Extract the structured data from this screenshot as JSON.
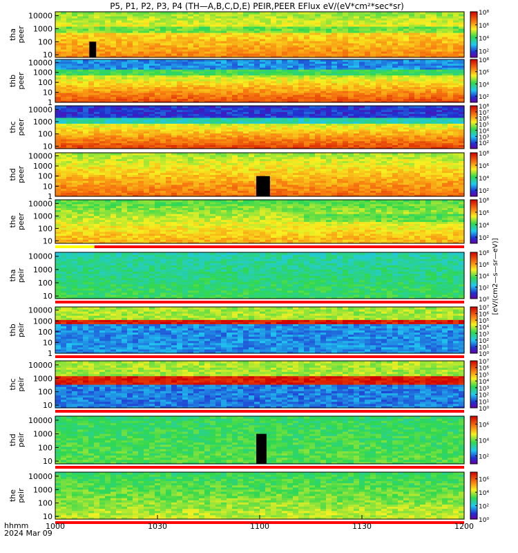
{
  "chart_data": {
    "type": "heatmap",
    "title": "P5, P1, P2, P3, P4 (TH—A,B,C,D,E) PEIR,PEER EFlux eV/(eV*cm²*sec*sr)",
    "colorbar_label": "[eV/(cm2—s—sr—eV)]",
    "x_label_top": "hhmm",
    "x_label_bottom": "2024 Mar 09",
    "x_ticks": [
      "1000",
      "1030",
      "1100",
      "1130",
      "1200"
    ],
    "x_range_minutes": [
      0,
      120
    ],
    "panels": [
      {
        "probe": "tha",
        "species": "peer",
        "y_ticks": [
          "10",
          "100",
          "1000",
          "10000"
        ],
        "cbar_ticks": [
          "10²",
          "10⁴",
          "10⁶",
          "10⁸"
        ],
        "cbar_range": [
          1,
          8
        ],
        "flag_bar": "none",
        "gaps": [
          {
            "start": 10,
            "end": 12,
            "min_e": 10,
            "max_e": 100
          }
        ]
      },
      {
        "probe": "thb",
        "species": "peer",
        "y_ticks": [
          "1",
          "10",
          "100",
          "1000",
          "10000"
        ],
        "cbar_ticks": [
          "10²",
          "10⁴",
          "10⁶",
          "10⁸"
        ],
        "cbar_range": [
          1,
          8
        ],
        "flag_bar": "none",
        "gaps": []
      },
      {
        "probe": "thc",
        "species": "peer",
        "y_ticks": [
          "10",
          "100",
          "1000",
          "10000"
        ],
        "cbar_ticks": [
          "10²",
          "10³",
          "10⁴",
          "10⁵",
          "10⁶",
          "10⁷",
          "10⁸"
        ],
        "cbar_range": [
          1,
          8
        ],
        "flag_bar": "none",
        "gaps": []
      },
      {
        "probe": "thd",
        "species": "peer",
        "y_ticks": [
          "1",
          "10",
          "100",
          "1000",
          "10000"
        ],
        "cbar_ticks": [
          "10²",
          "10⁴",
          "10⁶",
          "10⁸"
        ],
        "cbar_range": [
          1,
          8
        ],
        "flag_bar": "none",
        "gaps": [
          {
            "start": 59,
            "end": 63,
            "min_e": 1,
            "max_e": 100
          }
        ]
      },
      {
        "probe": "the",
        "species": "peer",
        "y_ticks": [
          "10",
          "100",
          "1000",
          "10000"
        ],
        "cbar_ticks": [
          "10²",
          "10⁴",
          "10⁶",
          "10⁸"
        ],
        "cbar_range": [
          1,
          8
        ],
        "flag_bar": "yellow-red",
        "gaps": []
      },
      {
        "probe": "tha",
        "species": "peir",
        "y_ticks": [
          "10",
          "100",
          "1000",
          "10000"
        ],
        "cbar_ticks": [
          "10⁰",
          "10²",
          "10⁴",
          "10⁶",
          "10⁸"
        ],
        "cbar_range": [
          0,
          8
        ],
        "flag_bar": "red",
        "gaps": []
      },
      {
        "probe": "thb",
        "species": "peir",
        "y_ticks": [
          "1",
          "10",
          "100",
          "1000",
          "10000"
        ],
        "cbar_ticks": [
          "10⁰",
          "10¹",
          "10²",
          "10³",
          "10⁴",
          "10⁵",
          "10⁶",
          "10⁷"
        ],
        "cbar_range": [
          0,
          7
        ],
        "flag_bar": "red",
        "gaps": []
      },
      {
        "probe": "thc",
        "species": "peir",
        "y_ticks": [
          "10",
          "100",
          "1000",
          "10000"
        ],
        "cbar_ticks": [
          "10⁰",
          "10¹",
          "10²",
          "10³",
          "10⁴",
          "10⁵",
          "10⁶",
          "10⁷"
        ],
        "cbar_range": [
          0,
          7
        ],
        "flag_bar": "red",
        "gaps": []
      },
      {
        "probe": "thd",
        "species": "peir",
        "y_ticks": [
          "10",
          "100",
          "1000",
          "10000"
        ],
        "cbar_ticks": [
          "10²",
          "10⁴",
          "10⁶"
        ],
        "cbar_range": [
          1,
          7
        ],
        "flag_bar": "red",
        "gaps": [
          {
            "start": 59,
            "end": 62,
            "min_e": 10,
            "max_e": 1000
          }
        ]
      },
      {
        "probe": "the",
        "species": "peir",
        "y_ticks": [
          "10",
          "100",
          "1000",
          "10000"
        ],
        "cbar_ticks": [
          "10⁰",
          "10²",
          "10⁴",
          "10⁶"
        ],
        "cbar_range": [
          0,
          7
        ],
        "flag_bar": "red",
        "gaps": []
      }
    ]
  }
}
